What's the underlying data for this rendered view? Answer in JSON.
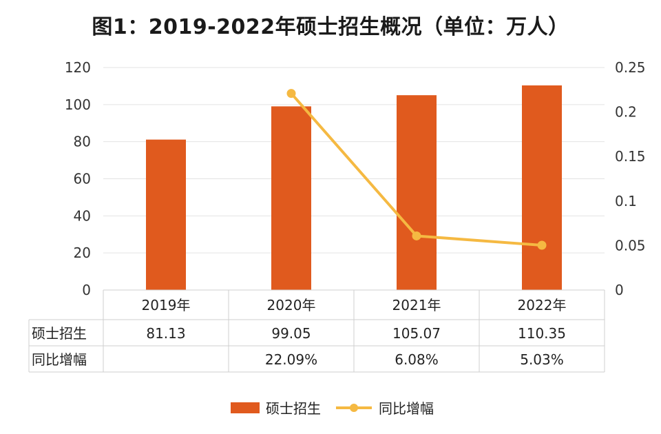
{
  "chart_data": {
    "type": "bar+line",
    "title": "图1：2019-2022年硕士招生概况（单位：万人）",
    "categories": [
      "2019年",
      "2020年",
      "2021年",
      "2022年"
    ],
    "series": [
      {
        "name": "硕士招生",
        "type": "bar",
        "axis": "left",
        "color": "#E05A1E",
        "values": [
          81.13,
          99.05,
          105.07,
          110.35
        ]
      },
      {
        "name": "同比增幅",
        "type": "line",
        "axis": "right",
        "color": "#F5B942",
        "values": [
          null,
          0.2209,
          0.0608,
          0.0503
        ]
      }
    ],
    "left_axis": {
      "min": 0,
      "max": 120,
      "ticks": [
        "0",
        "20",
        "40",
        "60",
        "80",
        "100",
        "120"
      ]
    },
    "right_axis": {
      "min": 0,
      "max": 0.25,
      "ticks": [
        "0",
        "0.05",
        "0.1",
        "0.15",
        "0.2",
        "0.25"
      ]
    },
    "grid": true,
    "legend_position": "bottom",
    "table": {
      "rows": [
        {
          "label": "硕士招生",
          "cells": [
            "81.13",
            "99.05",
            "105.07",
            "110.35"
          ]
        },
        {
          "label": "同比增幅",
          "cells": [
            "",
            "22.09%",
            "6.08%",
            "5.03%"
          ]
        }
      ]
    }
  }
}
